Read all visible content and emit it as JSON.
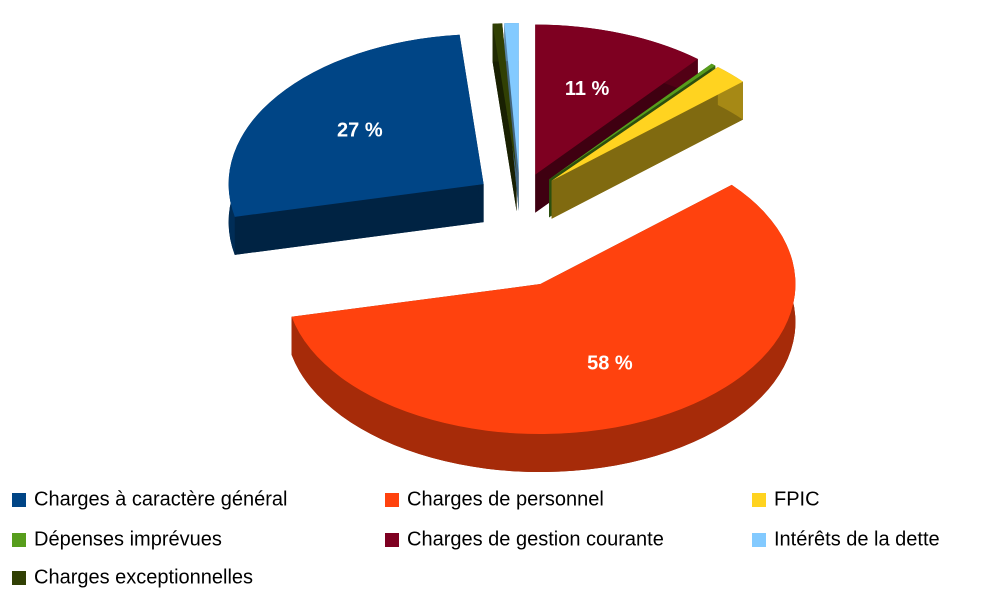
{
  "chart_data": {
    "type": "pie",
    "categories": [
      "Charges à caractère général",
      "Charges de personnel",
      "FPIC",
      "Dépenses imprévues",
      "Charges de gestion courante",
      "Intérêts de la dette",
      "Charges exceptionnelles"
    ],
    "values": [
      27,
      58,
      2.2,
      0.3,
      11,
      0.9,
      0.6
    ],
    "value_labels": [
      "27 %",
      "58 %",
      null,
      null,
      "11 %",
      null,
      null
    ],
    "colors": [
      "#004586",
      "#ff420e",
      "#ffd320",
      "#579d1c",
      "#7e0021",
      "#83caff",
      "#314004"
    ],
    "legend": "bottom"
  }
}
